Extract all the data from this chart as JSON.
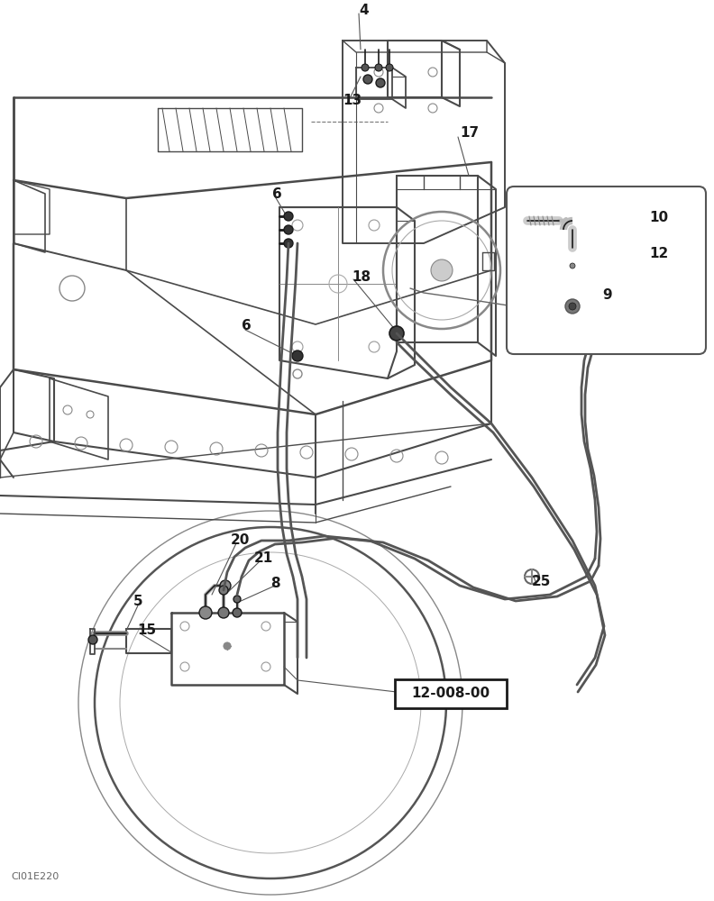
{
  "bg_color": "#ffffff",
  "lc": "#4a4a4a",
  "dc": "#1a1a1a",
  "figsize": [
    7.92,
    10.0
  ],
  "dpi": 100,
  "ref_label": "12-008-00",
  "watermark": "CI01E220"
}
